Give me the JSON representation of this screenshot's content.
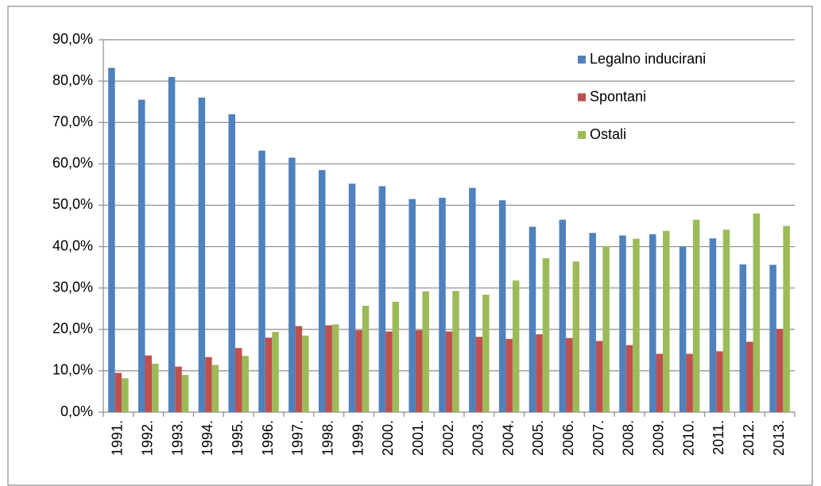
{
  "chart_data": {
    "type": "bar",
    "categories": [
      "1991.",
      "1992.",
      "1993.",
      "1994.",
      "1995.",
      "1996.",
      "1997.",
      "1998.",
      "1999.",
      "2000.",
      "2001.",
      "2002.",
      "2003.",
      "2004.",
      "2005.",
      "2006.",
      "2007.",
      "2008.",
      "2009.",
      "2010.",
      "2011.",
      "2012.",
      "2013."
    ],
    "series": [
      {
        "name": "Legalno inducirani",
        "color": "#4f81bd",
        "values": [
          83.2,
          75.5,
          81,
          76,
          72,
          63.2,
          61.5,
          58.5,
          55.2,
          54.6,
          51.5,
          51.8,
          54.2,
          51.2,
          44.8,
          46.5,
          43.3,
          42.7,
          43,
          40,
          42,
          35.7,
          35.6
        ]
      },
      {
        "name": "Spontani",
        "color": "#c0504d",
        "values": [
          9.5,
          13.7,
          11,
          13.3,
          15.5,
          18,
          20.8,
          21,
          19.8,
          19.5,
          19.8,
          19.5,
          18.2,
          17.7,
          18.8,
          17.9,
          17.2,
          16.2,
          14.1,
          14.1,
          14.7,
          17,
          20.1
        ]
      },
      {
        "name": "Ostali",
        "color": "#9bbb59",
        "values": [
          8.2,
          11.7,
          9,
          11.4,
          13.6,
          19.4,
          18.5,
          21.2,
          25.7,
          26.7,
          29.2,
          29.3,
          28.4,
          31.8,
          37.2,
          36.4,
          40.1,
          41.9,
          43.8,
          46.5,
          44.1,
          48,
          45
        ]
      }
    ],
    "ylim": [
      0,
      90
    ],
    "yticks": [
      {
        "value": 0,
        "label": "0,0%"
      },
      {
        "value": 10,
        "label": "10,0%"
      },
      {
        "value": 20,
        "label": "20,0%"
      },
      {
        "value": 30,
        "label": "30,0%"
      },
      {
        "value": 40,
        "label": "40,0%"
      },
      {
        "value": 50,
        "label": "50,0%"
      },
      {
        "value": 60,
        "label": "60,0%"
      },
      {
        "value": 70,
        "label": "70,0%"
      },
      {
        "value": 80,
        "label": "80,0%"
      },
      {
        "value": 90,
        "label": "90,0%"
      }
    ],
    "grid": true,
    "legend": "top-right"
  }
}
